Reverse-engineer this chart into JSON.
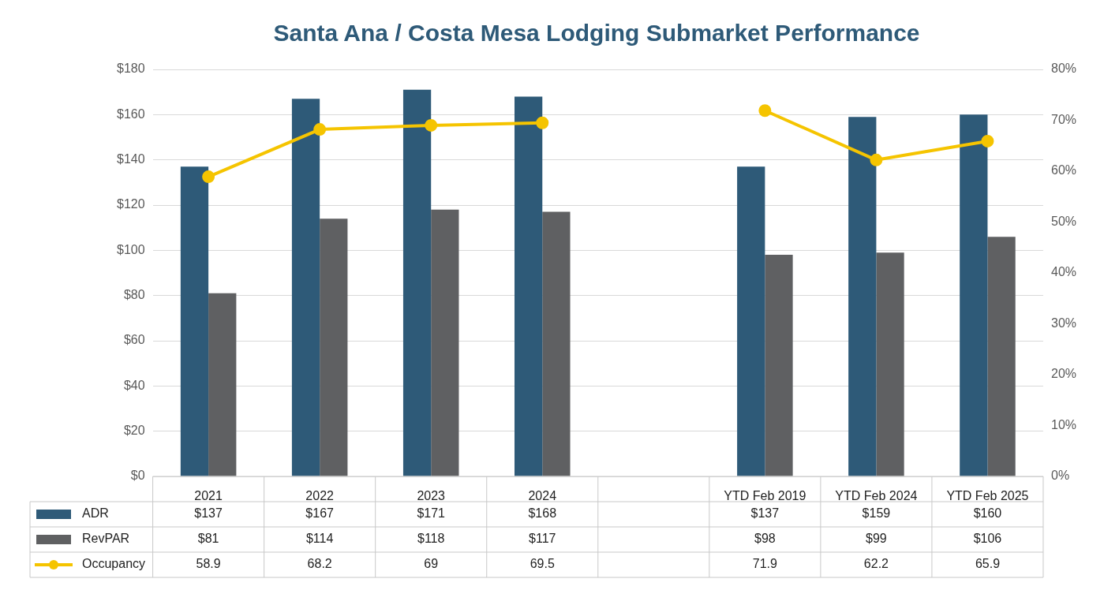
{
  "chart_data": {
    "type": "bar",
    "title": "Santa Ana / Costa Mesa Lodging Submarket Performance",
    "categories": [
      "2021",
      "2022",
      "2023",
      "2024",
      null,
      "YTD Feb 2019",
      "YTD Feb 2024",
      "YTD Feb 2025"
    ],
    "series": [
      {
        "name": "ADR",
        "color": "#2e5a78",
        "values": [
          137,
          167,
          171,
          168,
          null,
          137,
          159,
          160
        ],
        "value_labels": [
          "$137",
          "$167",
          "$171",
          "$168",
          null,
          "$137",
          "$159",
          "$160"
        ]
      },
      {
        "name": "RevPAR",
        "color": "#5f6062",
        "values": [
          81,
          114,
          118,
          117,
          null,
          98,
          99,
          106
        ],
        "value_labels": [
          "$81",
          "$114",
          "$118",
          "$117",
          null,
          "$98",
          "$99",
          "$106"
        ]
      },
      {
        "name": "Occupancy",
        "type": "line",
        "axis": "y2",
        "color": "#f5c400",
        "marker": "circle",
        "line_style": "solid",
        "values": [
          58.9,
          68.2,
          69,
          69.5,
          null,
          71.9,
          62.2,
          65.9
        ],
        "value_labels": [
          "58.9",
          "68.2",
          "69",
          "69.5",
          null,
          "71.9",
          "62.2",
          "65.9"
        ]
      }
    ],
    "ylim": [
      0,
      180
    ],
    "yticks": [
      {
        "value": 0,
        "label": "$0"
      },
      {
        "value": 20,
        "label": "$20"
      },
      {
        "value": 40,
        "label": "$40"
      },
      {
        "value": 60,
        "label": "$60"
      },
      {
        "value": 80,
        "label": "$80"
      },
      {
        "value": 100,
        "label": "$100"
      },
      {
        "value": 120,
        "label": "$120"
      },
      {
        "value": 140,
        "label": "$140"
      },
      {
        "value": 160,
        "label": "$160"
      },
      {
        "value": 180,
        "label": "$180"
      }
    ],
    "y2lim": [
      0,
      80
    ],
    "y2ticks": [
      {
        "value": 0,
        "label": "0%"
      },
      {
        "value": 10,
        "label": "10%"
      },
      {
        "value": 20,
        "label": "20%"
      },
      {
        "value": 30,
        "label": "30%"
      },
      {
        "value": 40,
        "label": "40%"
      },
      {
        "value": 50,
        "label": "50%"
      },
      {
        "value": 60,
        "label": "60%"
      },
      {
        "value": 70,
        "label": "70%"
      },
      {
        "value": 80,
        "label": "80%"
      }
    ],
    "grid": "y",
    "legend": "bottom left"
  }
}
